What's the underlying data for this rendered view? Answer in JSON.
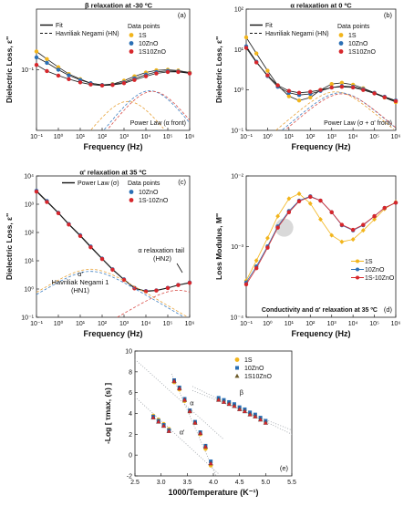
{
  "colors": {
    "series_1S": "#f2b51c",
    "series_10ZnO": "#2a6fb5",
    "series_1S10ZnO": "#d7262b",
    "hn_1S": "#e8a33a",
    "hn_10ZnO": "#3f7fc2",
    "hn_1S10ZnO": "#d9504a",
    "dotted": "#9aa0a6",
    "fit": "#111111",
    "highlight": "#c9c9c9"
  },
  "chart_data": [
    {
      "panel": "a",
      "type": "line",
      "title": "β relaxation at -30 ºC",
      "panel_label": "(a)",
      "xlabel": "Frequency (Hz)",
      "ylabel": "Dielectric Loss, ε''",
      "xscale": "log",
      "yscale": "log",
      "xlim": [
        0.1,
        1000000
      ],
      "ylim": [
        0.01,
        1
      ],
      "xticks": [
        "10⁻¹",
        "10⁰",
        "10¹",
        "10²",
        "10³",
        "10⁴",
        "10⁵",
        "10⁶"
      ],
      "yticks": [
        "10⁻¹"
      ],
      "legend_lines": [
        "Fit",
        "Havriliak Negami (HN)"
      ],
      "legend_title": "Data points",
      "annotation": "Power Law (α front)",
      "series": [
        {
          "name": "1S",
          "x": [
            0.1,
            0.3,
            1,
            3,
            10,
            30,
            100,
            300,
            1000,
            3000,
            10000,
            30000,
            100000,
            300000,
            1000000
          ],
          "y": [
            0.2,
            0.15,
            0.11,
            0.085,
            0.07,
            0.06,
            0.056,
            0.058,
            0.066,
            0.078,
            0.09,
            0.098,
            0.1,
            0.097,
            0.09
          ]
        },
        {
          "name": "10ZnO",
          "x": [
            0.1,
            0.3,
            1,
            3,
            10,
            30,
            100,
            300,
            1000,
            3000,
            10000,
            30000,
            100000,
            300000,
            1000000
          ],
          "y": [
            0.16,
            0.13,
            0.1,
            0.081,
            0.068,
            0.06,
            0.056,
            0.057,
            0.062,
            0.072,
            0.083,
            0.092,
            0.096,
            0.094,
            0.088
          ]
        },
        {
          "name": "1S10ZnO",
          "x": [
            0.1,
            0.3,
            1,
            3,
            10,
            30,
            100,
            300,
            1000,
            3000,
            10000,
            30000,
            100000,
            300000,
            1000000
          ],
          "y": [
            0.12,
            0.095,
            0.08,
            0.07,
            0.062,
            0.057,
            0.055,
            0.056,
            0.06,
            0.068,
            0.078,
            0.087,
            0.092,
            0.092,
            0.087
          ]
        }
      ]
    },
    {
      "panel": "b",
      "type": "line",
      "title": "α relaxation at 0 ºC",
      "panel_label": "(b)",
      "xlabel": "Frequency (Hz)",
      "ylabel": "Dielectric Loss, ε''",
      "xscale": "log",
      "yscale": "log",
      "xlim": [
        0.1,
        1000000
      ],
      "ylim": [
        0.1,
        100
      ],
      "xticks": [
        "10⁻¹",
        "10⁰",
        "10¹",
        "10²",
        "10³",
        "10⁴",
        "10⁵",
        "10⁶"
      ],
      "yticks": [
        "10⁻¹",
        "10⁰",
        "10¹",
        "10²"
      ],
      "legend_lines": [
        "Fit",
        "Havriliak Negami (HN)"
      ],
      "legend_title": "Data points",
      "annotation": "Power Law (σ + α' front)",
      "series": [
        {
          "name": "1S",
          "x": [
            0.1,
            0.3,
            1,
            3,
            10,
            30,
            100,
            300,
            1000,
            3000,
            10000,
            30000,
            100000,
            300000,
            1000000
          ],
          "y": [
            20,
            8,
            3,
            1.3,
            0.7,
            0.55,
            0.65,
            1.0,
            1.4,
            1.5,
            1.35,
            1.1,
            0.85,
            0.65,
            0.5
          ]
        },
        {
          "name": "10ZnO",
          "x": [
            0.1,
            0.3,
            1,
            3,
            10,
            30,
            100,
            300,
            1000,
            3000,
            10000,
            30000,
            100000,
            300000,
            1000000
          ],
          "y": [
            12,
            5,
            2.2,
            1.2,
            0.85,
            0.75,
            0.8,
            0.95,
            1.15,
            1.25,
            1.2,
            1.05,
            0.85,
            0.68,
            0.55
          ]
        },
        {
          "name": "1S10ZnO",
          "x": [
            0.1,
            0.3,
            1,
            3,
            10,
            30,
            100,
            300,
            1000,
            3000,
            10000,
            30000,
            100000,
            300000,
            1000000
          ],
          "y": [
            11,
            4.8,
            2.3,
            1.3,
            0.95,
            0.85,
            0.9,
            1.0,
            1.15,
            1.2,
            1.15,
            1.0,
            0.82,
            0.66,
            0.53
          ]
        }
      ]
    },
    {
      "panel": "c",
      "type": "line",
      "title": "α' relaxation at 35 ºC",
      "panel_label": "(c)",
      "xlabel": "Frequency (Hz)",
      "ylabel": "Dielectric Loss, ε''",
      "xscale": "log",
      "yscale": "log",
      "xlim": [
        0.1,
        1000000
      ],
      "ylim": [
        0.1,
        10000
      ],
      "xticks": [
        "10⁻¹",
        "10⁰",
        "10¹",
        "10²",
        "10³",
        "10⁴",
        "10⁵",
        "10⁶"
      ],
      "yticks": [
        "10⁻¹",
        "10⁰",
        "10¹",
        "10²",
        "10³",
        "10⁴"
      ],
      "legend_lines": [
        "Power Law (σ)"
      ],
      "legend_title": "Data points",
      "annotations": [
        "α'",
        "Havriliak Negami 1",
        "(HN1)",
        "α relaxation tail",
        "(HN2)"
      ],
      "series": [
        {
          "name": "10ZnO",
          "x": [
            0.1,
            0.3,
            1,
            3,
            10,
            30,
            100,
            300,
            1000,
            3000,
            10000,
            30000,
            100000,
            300000,
            1000000
          ],
          "y": [
            3000,
            1300,
            500,
            200,
            80,
            32,
            12,
            5,
            2.2,
            1.1,
            0.85,
            0.9,
            1.1,
            1.4,
            1.7
          ]
        },
        {
          "name": "1S-10ZnO",
          "x": [
            0.1,
            0.3,
            1,
            3,
            10,
            30,
            100,
            300,
            1000,
            3000,
            10000,
            30000,
            100000,
            300000,
            1000000
          ],
          "y": [
            2800,
            1200,
            480,
            190,
            75,
            30,
            11.5,
            4.8,
            2.1,
            1.05,
            0.82,
            0.88,
            1.08,
            1.38,
            1.65
          ]
        }
      ]
    },
    {
      "panel": "d",
      "type": "line",
      "title": "",
      "panel_label": "(d)",
      "xlabel": "Frequency (Hz)",
      "ylabel": "Loss Modulus, M''",
      "xscale": "log",
      "yscale": "log",
      "xlim": [
        0.1,
        1000000
      ],
      "ylim": [
        0.0001,
        0.1
      ],
      "xticks": [
        "10⁻¹",
        "10⁰",
        "10¹",
        "10²",
        "10³",
        "10⁴",
        "10⁵",
        "10⁶"
      ],
      "yticks": [
        "10⁻⁴",
        "10⁻³",
        "10⁻²"
      ],
      "annotation": "Conductivity and α' relaxation at 35 ºC",
      "series": [
        {
          "name": "1S",
          "x": [
            0.1,
            0.3,
            1,
            3,
            10,
            30,
            100,
            300,
            1000,
            3000,
            10000,
            30000,
            100000,
            300000,
            1000000
          ],
          "y": [
            0.0006,
            0.0016,
            0.0048,
            0.014,
            0.033,
            0.042,
            0.026,
            0.012,
            0.0055,
            0.004,
            0.0045,
            0.007,
            0.012,
            0.02,
            0.028
          ]
        },
        {
          "name": "10ZnO",
          "x": [
            0.1,
            0.3,
            1,
            3,
            10,
            30,
            100,
            300,
            1000,
            3000,
            10000,
            30000,
            100000,
            300000,
            1000000
          ],
          "y": [
            0.00055,
            0.0012,
            0.0032,
            0.0085,
            0.018,
            0.03,
            0.037,
            0.03,
            0.017,
            0.009,
            0.007,
            0.009,
            0.014,
            0.021,
            0.027
          ]
        },
        {
          "name": "1S-10ZnO",
          "x": [
            0.1,
            0.3,
            1,
            3,
            10,
            30,
            100,
            300,
            1000,
            3000,
            10000,
            30000,
            100000,
            300000,
            1000000
          ],
          "y": [
            0.0005,
            0.0011,
            0.003,
            0.008,
            0.017,
            0.029,
            0.036,
            0.03,
            0.017,
            0.0092,
            0.0072,
            0.0092,
            0.014,
            0.021,
            0.027
          ]
        }
      ]
    },
    {
      "panel": "e",
      "type": "scatter",
      "title": "",
      "panel_label": "(e)",
      "xlabel": "1000/Temperature (K⁻¹)",
      "ylabel": "-Log [ τmax, (s) ]",
      "xlim": [
        2.5,
        5.5
      ],
      "ylim": [
        -2,
        10
      ],
      "xticks": [
        "2.5",
        "3.0",
        "3.5",
        "4.0",
        "4.5",
        "5.0",
        "5.5"
      ],
      "yticks": [
        "-2",
        "0",
        "2",
        "4",
        "6",
        "8",
        "10"
      ],
      "annotations": [
        "α'",
        "α",
        "β"
      ],
      "series": [
        {
          "name": "1S",
          "x": [
            2.85,
            2.95,
            3.05,
            3.15,
            3.25,
            3.35,
            3.45,
            3.55,
            3.65,
            3.75,
            3.85,
            3.95,
            4.1,
            4.2,
            4.3,
            4.4,
            4.5,
            4.6,
            4.7,
            4.8,
            4.9,
            5.0
          ],
          "y": [
            3.8,
            3.4,
            3.0,
            2.5,
            7.0,
            6.3,
            5.2,
            4.2,
            3.1,
            2.0,
            0.6,
            -1.0,
            5.4,
            5.2,
            5.0,
            4.8,
            4.5,
            4.3,
            4.0,
            3.8,
            3.5,
            3.2
          ]
        },
        {
          "name": "10ZnO",
          "x": [
            2.85,
            2.95,
            3.05,
            3.15,
            3.25,
            3.35,
            3.45,
            3.55,
            3.65,
            3.75,
            3.85,
            3.95,
            4.1,
            4.2,
            4.3,
            4.4,
            4.5,
            4.6,
            4.7,
            4.8,
            4.9,
            5.0
          ],
          "y": [
            3.7,
            3.3,
            2.9,
            2.4,
            7.2,
            6.5,
            5.4,
            4.3,
            3.2,
            2.2,
            0.9,
            -0.6,
            5.5,
            5.3,
            5.1,
            4.9,
            4.6,
            4.4,
            4.1,
            3.9,
            3.6,
            3.3
          ]
        },
        {
          "name": "1S10ZnO",
          "x": [
            2.85,
            2.95,
            3.05,
            3.15,
            3.25,
            3.35,
            3.45,
            3.55,
            3.65,
            3.75,
            3.85,
            3.95,
            4.1,
            4.2,
            4.3,
            4.4,
            4.5,
            4.6,
            4.7,
            4.8,
            4.9,
            5.0
          ],
          "y": [
            3.6,
            3.2,
            2.8,
            2.3,
            7.1,
            6.4,
            5.3,
            4.2,
            3.1,
            2.1,
            0.8,
            -0.8,
            5.3,
            5.1,
            4.9,
            4.7,
            4.4,
            4.2,
            3.9,
            3.7,
            3.4,
            3.1
          ]
        }
      ]
    }
  ],
  "legend_glyphs": [
    "Fit",
    "Havriliak Negami (HN)",
    "Data points",
    "1S",
    "10ZnO",
    "1S10ZnO"
  ]
}
